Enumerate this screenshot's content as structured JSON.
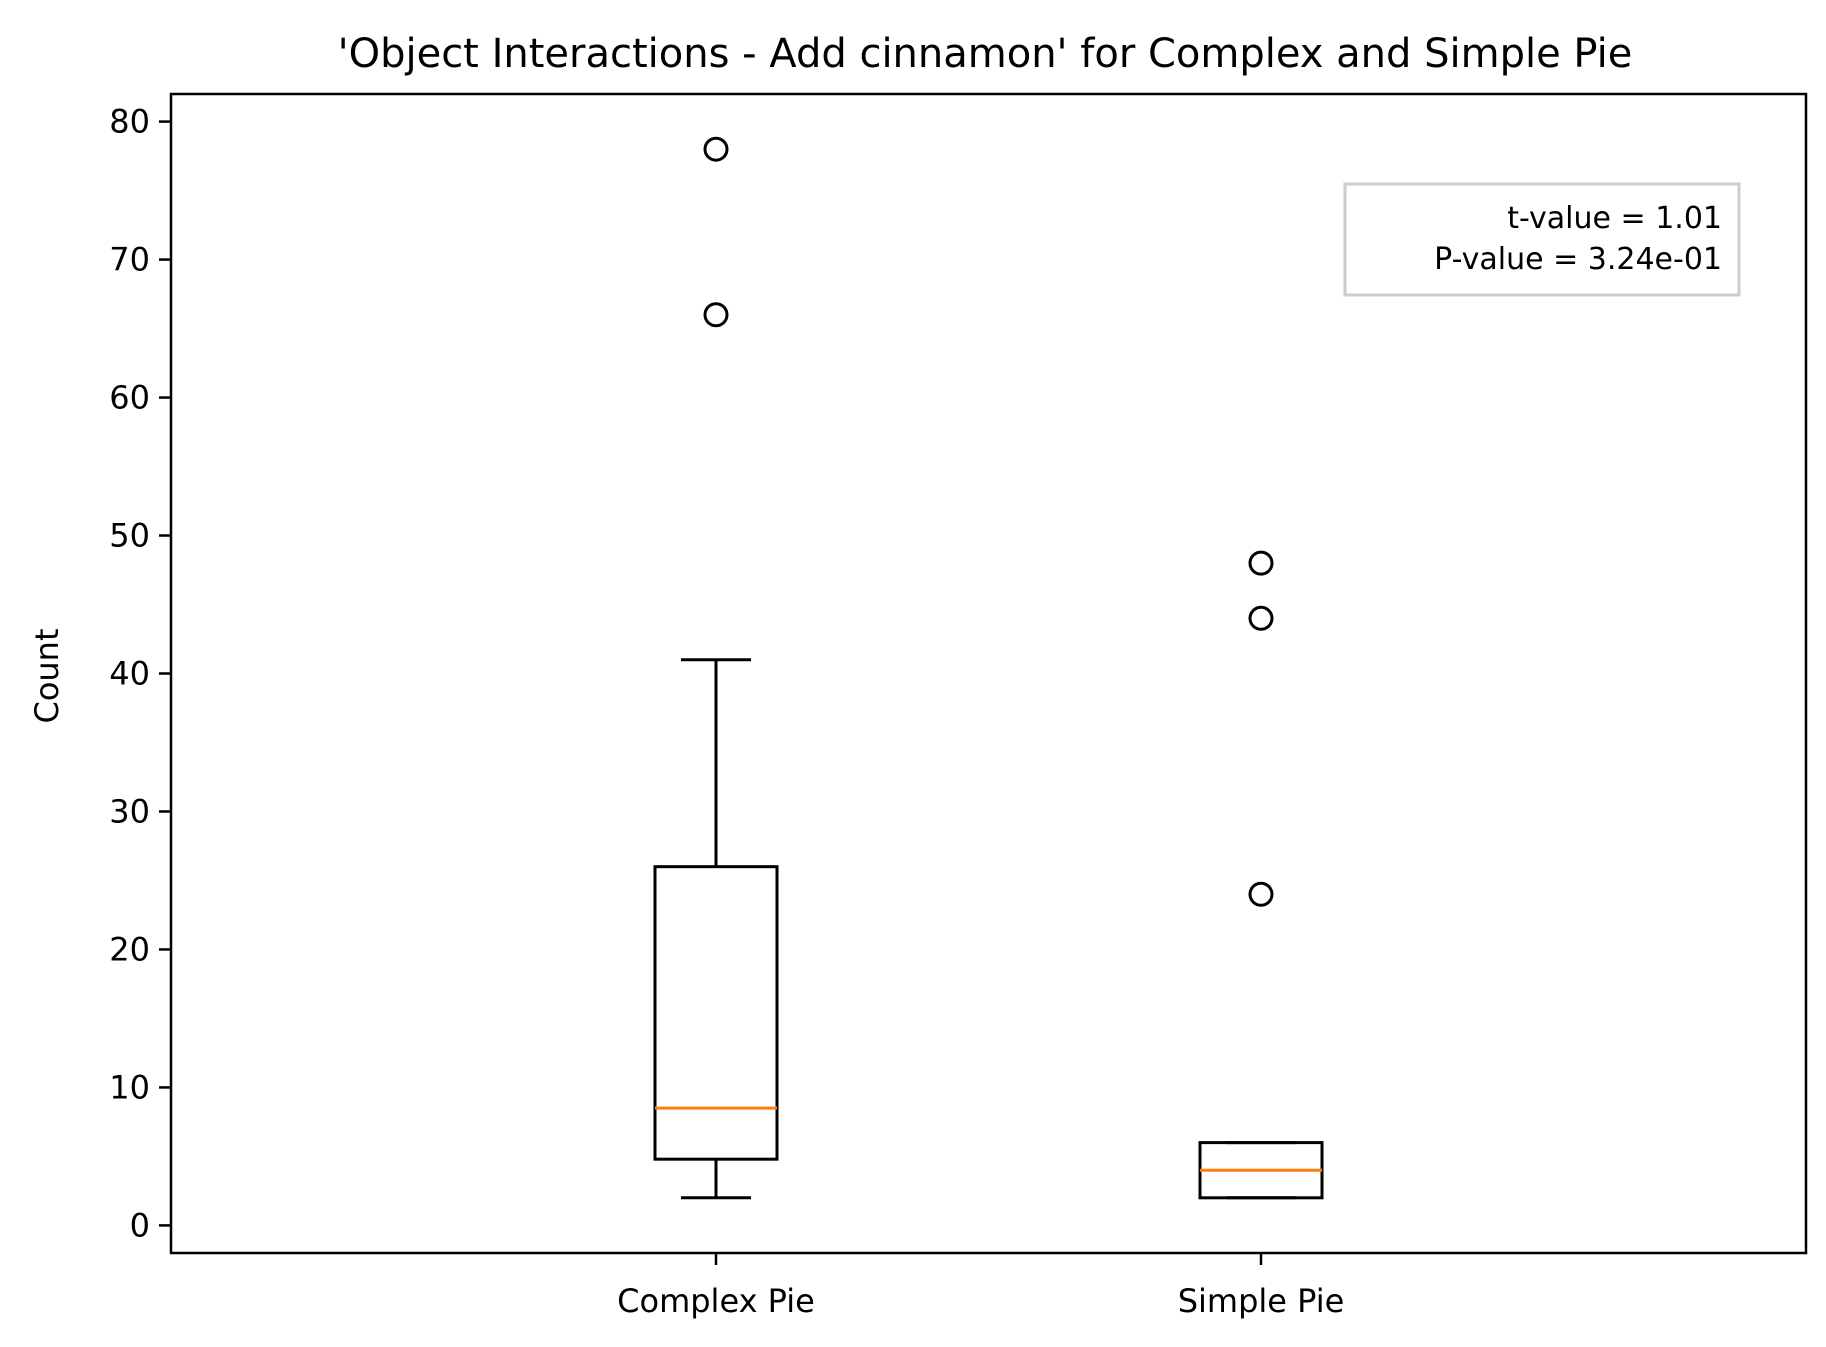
{
  "chart_data": {
    "type": "box",
    "title": "'Object Interactions - Add cinnamon' for Complex and Simple Pie",
    "xlabel": "",
    "ylabel": "Count",
    "ylim": [
      -2,
      82
    ],
    "yticks": [
      0,
      10,
      20,
      30,
      40,
      50,
      60,
      70,
      80
    ],
    "categories": [
      "Complex Pie",
      "Simple Pie"
    ],
    "boxes": [
      {
        "category": "Complex Pie",
        "whisker_low": 2,
        "q1": 4.8,
        "median": 8.5,
        "q3": 26,
        "whisker_high": 41,
        "outliers": [
          66,
          78
        ]
      },
      {
        "category": "Simple Pie",
        "whisker_low": 2,
        "q1": 2,
        "median": 4,
        "q3": 6,
        "whisker_high": 6,
        "outliers": [
          24,
          44,
          48
        ]
      }
    ],
    "annotation": {
      "lines": [
        "t-value = 1.01",
        "P-value = 3.24e-01"
      ],
      "placement": "top-right"
    },
    "grid": false,
    "colors": {
      "box": "#000000",
      "median": "#ff7f0e",
      "annotation_border": "#cccccc"
    }
  }
}
